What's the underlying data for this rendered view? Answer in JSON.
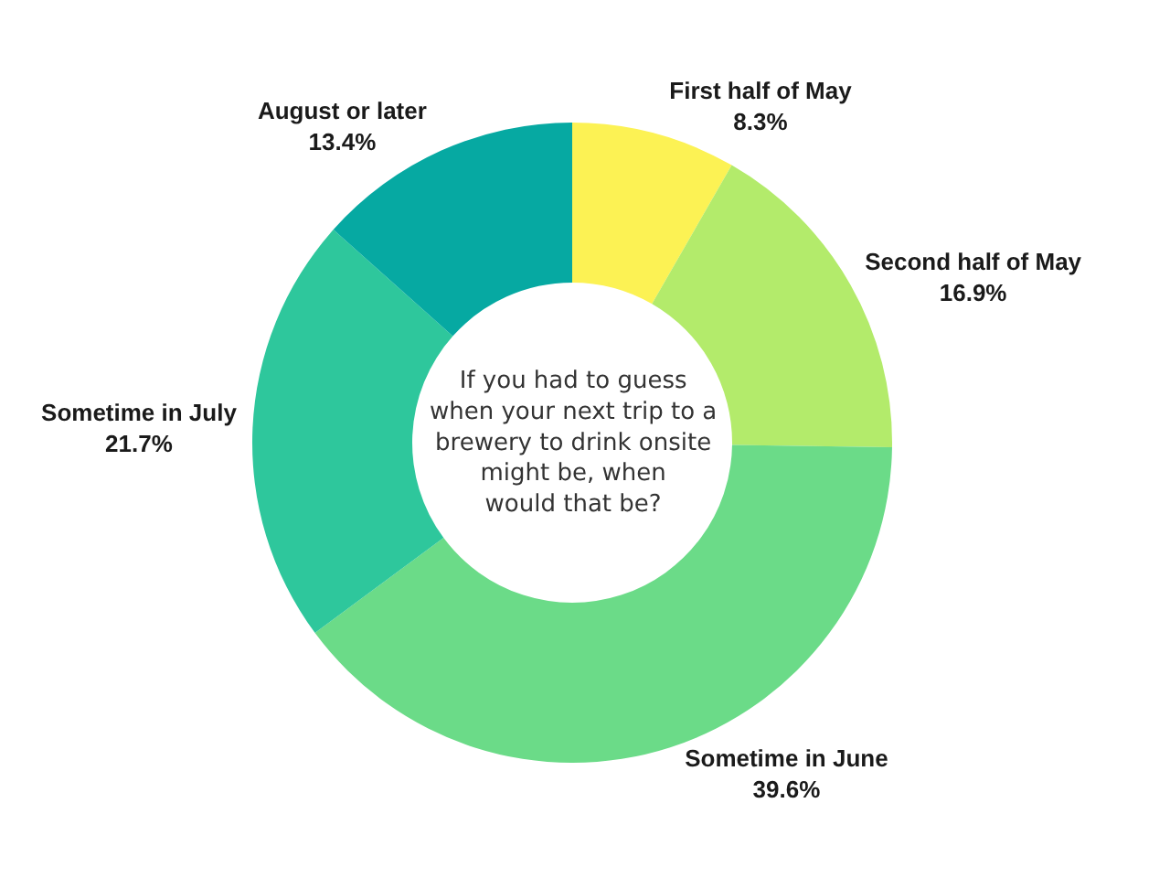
{
  "chart_data": {
    "type": "donut",
    "categories": [
      "First half of May",
      "Second half of May",
      "Sometime in June",
      "Sometime in July",
      "August or later"
    ],
    "values": [
      8.3,
      16.9,
      39.6,
      21.7,
      13.4
    ],
    "value_labels": [
      "8.3%",
      "16.9%",
      "39.6%",
      "21.7%",
      "13.4%"
    ],
    "colors": [
      "#fcf254",
      "#b3eb6b",
      "#6bdb88",
      "#2ec79c",
      "#06a9a2"
    ],
    "annotations": [
      "If you had to guess\nwhen your next trip to a\nbrewery to drink onsite\nmight be, when\nwould that be?"
    ]
  }
}
